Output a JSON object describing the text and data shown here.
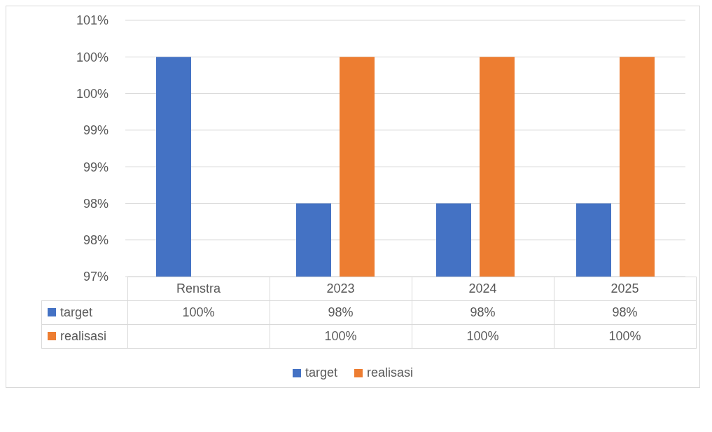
{
  "chart_data": {
    "type": "bar",
    "categories": [
      "Renstra",
      "2023",
      "2024",
      "2025"
    ],
    "series": [
      {
        "name": "target",
        "color": "#4472c4",
        "values": [
          100,
          98,
          98,
          98
        ],
        "value_labels": [
          "100%",
          "98%",
          "98%",
          "98%"
        ]
      },
      {
        "name": "realisasi",
        "color": "#ed7d31",
        "values": [
          null,
          100,
          100,
          100
        ],
        "value_labels": [
          null,
          "100%",
          "100%",
          "100%"
        ]
      }
    ],
    "ylim": [
      97,
      100.5
    ],
    "yticks": [
      {
        "value": 97,
        "label": "97%"
      },
      {
        "value": 97.5,
        "label": "98%"
      },
      {
        "value": 98,
        "label": "98%"
      },
      {
        "value": 98.5,
        "label": "99%"
      },
      {
        "value": 99,
        "label": "99%"
      },
      {
        "value": 99.5,
        "label": "100%"
      },
      {
        "value": 100,
        "label": "100%"
      },
      {
        "value": 100.5,
        "label": "101%"
      }
    ],
    "grid": "y",
    "legend": "bottom"
  }
}
